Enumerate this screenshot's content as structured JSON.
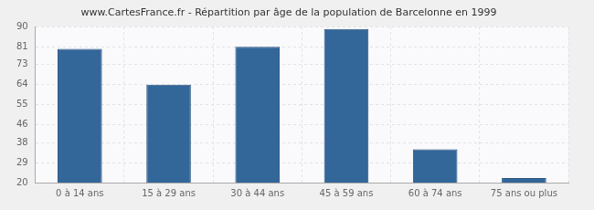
{
  "chart_data": {
    "type": "bar",
    "title": "www.CartesFrance.fr - Répartition par âge de la population de Barcelonne en 1999",
    "categories": [
      "0 à 14 ans",
      "15 à 29 ans",
      "30 à 44 ans",
      "45 à 59 ans",
      "60 à 74 ans",
      "75 ans ou plus"
    ],
    "values": [
      80,
      64,
      81,
      89,
      35,
      22
    ],
    "color": "#336699",
    "ylim": [
      20,
      90
    ],
    "yticks": [
      20,
      29,
      38,
      46,
      55,
      64,
      73,
      81,
      90
    ],
    "grid": true
  }
}
